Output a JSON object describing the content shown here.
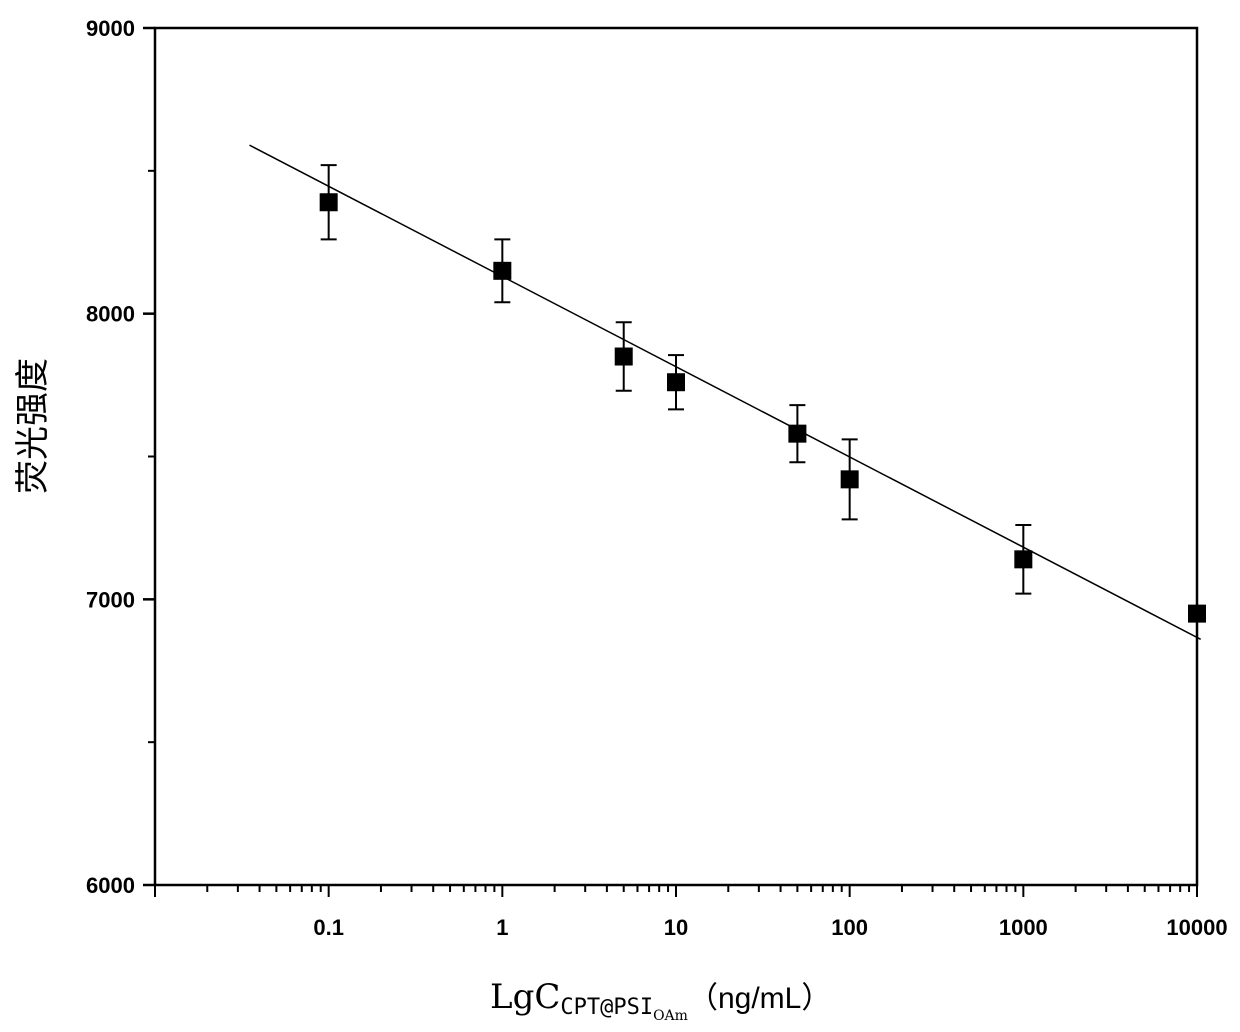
{
  "chart_data": {
    "type": "scatter",
    "xscale": "log",
    "xlim": [
      0.01,
      10000
    ],
    "ylim": [
      6000,
      9000
    ],
    "x_tick_labels": [
      "0.1",
      "1",
      "10",
      "100",
      "1000",
      "10000"
    ],
    "x_tick_values": [
      0.1,
      1,
      10,
      100,
      1000,
      10000
    ],
    "y_tick_labels": [
      "6000",
      "7000",
      "8000",
      "9000"
    ],
    "y_tick_values": [
      6000,
      7000,
      8000,
      9000
    ],
    "ylabel": "荧光强度",
    "xlabel": {
      "main": "LgC",
      "sub": "CPT@PSI",
      "subsub": "OAm",
      "unit": "（ng/mL）"
    },
    "points": [
      {
        "x": 0.1,
        "y": 8390,
        "err": 130
      },
      {
        "x": 1,
        "y": 8150,
        "err": 110
      },
      {
        "x": 5,
        "y": 7850,
        "err": 120
      },
      {
        "x": 10,
        "y": 7760,
        "err": 95
      },
      {
        "x": 50,
        "y": 7580,
        "err": 100
      },
      {
        "x": 100,
        "y": 7420,
        "err": 140
      },
      {
        "x": 1000,
        "y": 7140,
        "err": 120
      },
      {
        "x": 10000,
        "y": 6950,
        "err": 25
      }
    ],
    "fit_line": {
      "x": [
        0.035,
        10500
      ],
      "y": [
        8590,
        6860
      ]
    },
    "grid": false,
    "legend": "none"
  }
}
